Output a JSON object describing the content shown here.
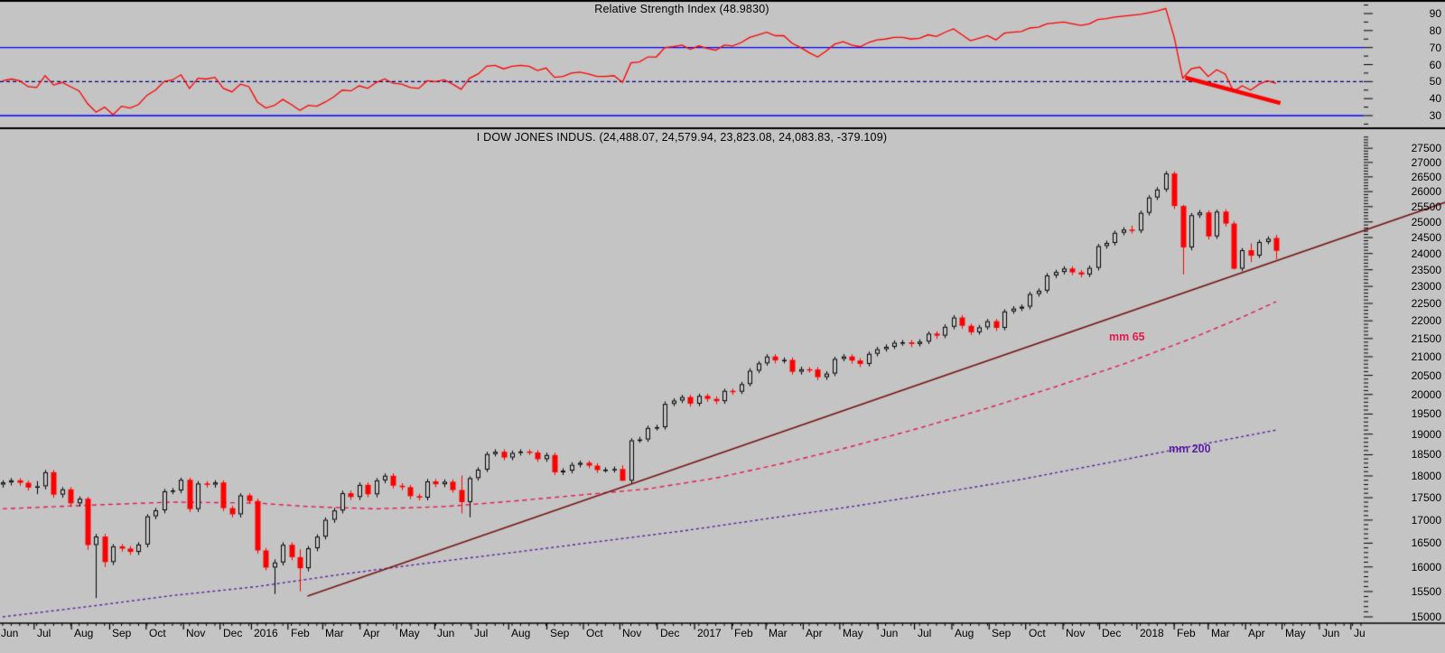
{
  "rsi_panel": {
    "title": "Relative Strength Index (48.9830)",
    "value": 48.983,
    "axis": {
      "min": 30,
      "max": 90,
      "step": 10,
      "minor_step": 5,
      "overbought": 70,
      "oversold": 30,
      "mid": 50
    }
  },
  "price_panel": {
    "title": "I DOW JONES INDUS. (24,488.07, 24,579.94, 23,823.08, 24,083.83, -379.109)",
    "last_bar": {
      "open": "24,488.07",
      "high": "24,579.94",
      "low": "23,823.08",
      "close": "24,083.83",
      "change": "-379.109"
    },
    "ma65_label": "mm 65",
    "ma200_label": "mm 200",
    "axis": {
      "min": 15000,
      "max": 27500,
      "step": 500,
      "minor_step": 100,
      "scale": "log"
    }
  },
  "colors": {
    "background": "#c4c4c4",
    "up_candle": "#000000",
    "down_candle": "#ff0000",
    "rsi_line": "#ff0000",
    "rsi_trend": "#ff0000",
    "band_line": "#0000ff",
    "mid_line": "#000080",
    "trendline": "#781414",
    "ma65": "#e8184c",
    "ma200": "#5a1fa5",
    "axis": "#000000",
    "text": "#000000"
  },
  "chart_data": {
    "type": "candlestick",
    "instrument": "DOW JONES INDUS.",
    "frequency": "weekly",
    "x_range": [
      "Jun 2015",
      "Jul 2018"
    ],
    "ylim": [
      15000,
      27500
    ],
    "y_scale": "log",
    "grid": false,
    "month_labels": [
      [
        "Jun",
        -0.5
      ],
      [
        "Jul",
        3.7
      ],
      [
        "Aug",
        8.1
      ],
      [
        "Sep",
        12.6
      ],
      [
        "Oct",
        16.9
      ],
      [
        "Nov",
        21.3
      ],
      [
        "Dec",
        25.6
      ],
      [
        "2016",
        29.3
      ],
      [
        "Feb",
        33.6
      ],
      [
        "Mar",
        37.7
      ],
      [
        "Apr",
        42.1
      ],
      [
        "May",
        46.4
      ],
      [
        "Jun",
        50.9
      ],
      [
        "Jul",
        55.2
      ],
      [
        "Aug",
        59.6
      ],
      [
        "Sep",
        64.1
      ],
      [
        "Oct",
        68.4
      ],
      [
        "Nov",
        72.7
      ],
      [
        "Dec",
        77.1
      ],
      [
        "2017",
        81.5
      ],
      [
        "Feb",
        85.9
      ],
      [
        "Mar",
        89.9
      ],
      [
        "Apr",
        94.3
      ],
      [
        "May",
        98.6
      ],
      [
        "Jun",
        103.1
      ],
      [
        "Jul",
        107.4
      ],
      [
        "Aug",
        111.8
      ],
      [
        "Sep",
        116.2
      ],
      [
        "Oct",
        120.5
      ],
      [
        "Nov",
        124.9
      ],
      [
        "Dec",
        129.2
      ],
      [
        "2018",
        133.6
      ],
      [
        "Feb",
        138.0
      ],
      [
        "Mar",
        142.0
      ],
      [
        "Apr",
        146.4
      ],
      [
        "May",
        150.7
      ],
      [
        "Jun",
        155.1
      ],
      [
        "Ju",
        158.8
      ]
    ],
    "candles": [
      [
        17800,
        17900,
        17730,
        17849
      ],
      [
        17849,
        17950,
        17780,
        17898
      ],
      [
        17898,
        17950,
        17770,
        17840
      ],
      [
        17840,
        17890,
        17660,
        17730
      ],
      [
        17730,
        17880,
        17580,
        17760
      ],
      [
        17760,
        18140,
        17690,
        18086
      ],
      [
        18086,
        18140,
        17500,
        17569
      ],
      [
        17569,
        17740,
        17500,
        17690
      ],
      [
        17690,
        17740,
        17300,
        17373
      ],
      [
        17373,
        17530,
        17300,
        17477
      ],
      [
        17477,
        17520,
        16360,
        16460
      ],
      [
        16460,
        16700,
        15370,
        16643
      ],
      [
        16643,
        16700,
        16000,
        16102
      ],
      [
        16102,
        16480,
        16040,
        16433
      ],
      [
        16433,
        16480,
        16320,
        16385
      ],
      [
        16385,
        16440,
        16250,
        16315
      ],
      [
        16315,
        16520,
        16250,
        16472
      ],
      [
        16472,
        17130,
        16410,
        17084
      ],
      [
        17084,
        17270,
        17020,
        17216
      ],
      [
        17216,
        17700,
        17150,
        17647
      ],
      [
        17647,
        17720,
        17580,
        17664
      ],
      [
        17664,
        17960,
        17600,
        17910
      ],
      [
        17910,
        17960,
        17180,
        17245
      ],
      [
        17245,
        17880,
        17180,
        17824
      ],
      [
        17824,
        17880,
        17730,
        17798
      ],
      [
        17798,
        17900,
        17730,
        17848
      ],
      [
        17848,
        17900,
        17200,
        17265
      ],
      [
        17265,
        17320,
        17060,
        17128
      ],
      [
        17128,
        17600,
        17060,
        17552
      ],
      [
        17552,
        17600,
        17360,
        17425
      ],
      [
        17425,
        17480,
        16280,
        16346
      ],
      [
        16346,
        16400,
        15930,
        15988
      ],
      [
        15988,
        16160,
        15450,
        16094
      ],
      [
        16094,
        16520,
        16030,
        16466
      ],
      [
        16466,
        16520,
        16140,
        16205
      ],
      [
        16205,
        16370,
        15503,
        15974
      ],
      [
        15974,
        16440,
        15910,
        16392
      ],
      [
        16392,
        16690,
        16330,
        16640
      ],
      [
        16640,
        17060,
        16580,
        17007
      ],
      [
        17007,
        17270,
        16940,
        17213
      ],
      [
        17213,
        17660,
        17150,
        17602
      ],
      [
        17602,
        17660,
        17450,
        17516
      ],
      [
        17516,
        17850,
        17450,
        17793
      ],
      [
        17793,
        17850,
        17510,
        17577
      ],
      [
        17577,
        17950,
        17510,
        17897
      ],
      [
        17897,
        18060,
        17830,
        18004
      ],
      [
        18004,
        18060,
        17710,
        17774
      ],
      [
        17774,
        17830,
        17670,
        17740
      ],
      [
        17740,
        17790,
        17470,
        17535
      ],
      [
        17535,
        17590,
        17440,
        17501
      ],
      [
        17501,
        17930,
        17440,
        17873
      ],
      [
        17873,
        17930,
        17740,
        17807
      ],
      [
        17807,
        17920,
        17740,
        17865
      ],
      [
        17865,
        17920,
        17610,
        17675
      ],
      [
        17675,
        18011,
        17150,
        17400
      ],
      [
        17400,
        17990,
        17063,
        17949
      ],
      [
        17949,
        18200,
        17890,
        18147
      ],
      [
        18147,
        18570,
        18090,
        18516
      ],
      [
        18516,
        18630,
        18460,
        18571
      ],
      [
        18571,
        18630,
        18370,
        18432
      ],
      [
        18432,
        18600,
        18370,
        18543
      ],
      [
        18543,
        18630,
        18480,
        18576
      ],
      [
        18576,
        18630,
        18490,
        18553
      ],
      [
        18553,
        18610,
        18330,
        18395
      ],
      [
        18395,
        18550,
        18330,
        18492
      ],
      [
        18492,
        18550,
        18020,
        18085
      ],
      [
        18085,
        18180,
        18020,
        18123
      ],
      [
        18123,
        18320,
        18060,
        18261
      ],
      [
        18261,
        18360,
        18200,
        18308
      ],
      [
        18308,
        18360,
        18180,
        18240
      ],
      [
        18240,
        18300,
        18070,
        18138
      ],
      [
        18138,
        18200,
        18080,
        18146
      ],
      [
        18146,
        18220,
        18080,
        18161
      ],
      [
        18161,
        18250,
        17883,
        17888
      ],
      [
        17888,
        18900,
        17830,
        18848
      ],
      [
        18848,
        18930,
        18790,
        18868
      ],
      [
        18868,
        19210,
        18810,
        19152
      ],
      [
        19152,
        19230,
        19090,
        19170
      ],
      [
        19170,
        19820,
        19110,
        19757
      ],
      [
        19757,
        19900,
        19700,
        19843
      ],
      [
        19843,
        19990,
        19780,
        19934
      ],
      [
        19934,
        19990,
        19690,
        19763
      ],
      [
        19763,
        20020,
        19700,
        19964
      ],
      [
        19964,
        20020,
        19810,
        19886
      ],
      [
        19886,
        19950,
        19750,
        19827
      ],
      [
        19827,
        20150,
        19760,
        20094
      ],
      [
        20094,
        20150,
        19990,
        20071
      ],
      [
        20071,
        20330,
        20010,
        20269
      ],
      [
        20269,
        20690,
        20210,
        20624
      ],
      [
        20624,
        20880,
        20560,
        20822
      ],
      [
        20822,
        21070,
        20760,
        21006
      ],
      [
        21006,
        21070,
        20820,
        20903
      ],
      [
        20903,
        20980,
        20820,
        20915
      ],
      [
        20915,
        20980,
        20520,
        20597
      ],
      [
        20597,
        20730,
        20520,
        20663
      ],
      [
        20663,
        20720,
        20570,
        20656
      ],
      [
        20656,
        20720,
        20370,
        20453
      ],
      [
        20453,
        20610,
        20380,
        20548
      ],
      [
        20548,
        21000,
        20480,
        20941
      ],
      [
        20941,
        21070,
        20880,
        21007
      ],
      [
        21007,
        21070,
        20810,
        20897
      ],
      [
        20897,
        20960,
        20720,
        20805
      ],
      [
        20805,
        21140,
        20740,
        21080
      ],
      [
        21080,
        21270,
        21010,
        21206
      ],
      [
        21206,
        21340,
        21140,
        21272
      ],
      [
        21272,
        21450,
        21210,
        21384
      ],
      [
        21384,
        21460,
        21300,
        21395
      ],
      [
        21395,
        21460,
        21260,
        21350
      ],
      [
        21350,
        21480,
        21280,
        21414
      ],
      [
        21414,
        21700,
        21350,
        21638
      ],
      [
        21638,
        21700,
        21490,
        21580
      ],
      [
        21580,
        21900,
        21510,
        21830
      ],
      [
        21830,
        22160,
        21760,
        22093
      ],
      [
        22093,
        22160,
        21770,
        21858
      ],
      [
        21858,
        21920,
        21600,
        21675
      ],
      [
        21675,
        21880,
        21610,
        21814
      ],
      [
        21814,
        22050,
        21750,
        21988
      ],
      [
        21988,
        22050,
        21710,
        21798
      ],
      [
        21798,
        22330,
        21730,
        22268
      ],
      [
        22268,
        22420,
        22200,
        22350
      ],
      [
        22350,
        22470,
        22280,
        22405
      ],
      [
        22405,
        22840,
        22330,
        22774
      ],
      [
        22774,
        22940,
        22700,
        22872
      ],
      [
        22872,
        23400,
        22800,
        23329
      ],
      [
        23329,
        23500,
        23250,
        23434
      ],
      [
        23434,
        23610,
        23360,
        23539
      ],
      [
        23539,
        23610,
        23340,
        23422
      ],
      [
        23422,
        23490,
        23270,
        23358
      ],
      [
        23358,
        23630,
        23280,
        23558
      ],
      [
        23558,
        24300,
        23480,
        24232
      ],
      [
        24232,
        24400,
        24150,
        24329
      ],
      [
        24329,
        24720,
        24250,
        24652
      ],
      [
        24652,
        24830,
        24570,
        24754
      ],
      [
        24754,
        24880,
        24630,
        24719
      ],
      [
        24719,
        25370,
        24640,
        25296
      ],
      [
        25296,
        25880,
        25210,
        25803
      ],
      [
        25803,
        26150,
        25720,
        26072
      ],
      [
        26072,
        26700,
        25990,
        26617
      ],
      [
        26617,
        26690,
        25420,
        25521
      ],
      [
        25521,
        25560,
        23360,
        24191
      ],
      [
        24191,
        25290,
        24100,
        25219
      ],
      [
        25219,
        25390,
        25130,
        25310
      ],
      [
        25310,
        25380,
        24440,
        24538
      ],
      [
        24538,
        25400,
        24460,
        25336
      ],
      [
        25336,
        25410,
        24850,
        24947
      ],
      [
        24947,
        25020,
        23509,
        23533
      ],
      [
        23533,
        24170,
        23460,
        24103
      ],
      [
        24103,
        24314,
        23738,
        23933
      ],
      [
        23933,
        24430,
        23860,
        24360
      ],
      [
        24360,
        24540,
        24290,
        24463
      ],
      [
        24488.07,
        24579.94,
        23823.08,
        24083.83
      ]
    ],
    "rsi": [
      50.5,
      51.5,
      50.5,
      47,
      46.5,
      53.5,
      48,
      49.5,
      47,
      44.5,
      37,
      32,
      35,
      30.5,
      35.5,
      34.5,
      36.5,
      42,
      45,
      50,
      51,
      54,
      46,
      52,
      51.5,
      52.5,
      46,
      44,
      48.5,
      47,
      38,
      34.5,
      36,
      39.5,
      36.5,
      33,
      36,
      35.5,
      38,
      41,
      45,
      44.5,
      47.5,
      46,
      49.5,
      51.5,
      49,
      48.5,
      46.5,
      46,
      50.5,
      50,
      51,
      48.5,
      45.5,
      52,
      54.5,
      59,
      59.5,
      57.5,
      59,
      59.5,
      59,
      56.5,
      58,
      52.5,
      53,
      55,
      55.5,
      54.5,
      53,
      53,
      53.5,
      49.5,
      61,
      61.5,
      64.5,
      64.5,
      70,
      70.5,
      71.5,
      69,
      71,
      69.5,
      68.5,
      71.5,
      71,
      73,
      76,
      77.5,
      79,
      77,
      77,
      72.5,
      70,
      67,
      64.5,
      68,
      72,
      73.5,
      71.5,
      70.5,
      73,
      74.5,
      75,
      76,
      76,
      75,
      75.5,
      77.5,
      76.5,
      79,
      81,
      77.5,
      74,
      75.5,
      77,
      74.5,
      78.5,
      79,
      79.5,
      81.5,
      82,
      84,
      84.5,
      85,
      84,
      83,
      84,
      86.5,
      87,
      88,
      88.5,
      89,
      89.5,
      90.5,
      91.5,
      93,
      76,
      52,
      57.5,
      58.5,
      53,
      57,
      54.5,
      44,
      47.5,
      45,
      48.5,
      50.5,
      48.98
    ],
    "ma65_points": [
      [
        0,
        17250
      ],
      [
        10,
        17330
      ],
      [
        20,
        17400
      ],
      [
        30,
        17380
      ],
      [
        36,
        17300
      ],
      [
        44,
        17250
      ],
      [
        52,
        17300
      ],
      [
        60,
        17420
      ],
      [
        68,
        17560
      ],
      [
        76,
        17700
      ],
      [
        84,
        17950
      ],
      [
        92,
        18300
      ],
      [
        100,
        18700
      ],
      [
        108,
        19150
      ],
      [
        116,
        19650
      ],
      [
        124,
        20200
      ],
      [
        132,
        20800
      ],
      [
        140,
        21500
      ],
      [
        146,
        22100
      ],
      [
        150,
        22550
      ]
    ],
    "ma200_points": [
      [
        0,
        15000
      ],
      [
        10,
        15200
      ],
      [
        20,
        15420
      ],
      [
        30,
        15600
      ],
      [
        40,
        15850
      ],
      [
        50,
        16080
      ],
      [
        60,
        16300
      ],
      [
        70,
        16530
      ],
      [
        80,
        16760
      ],
      [
        90,
        17030
      ],
      [
        100,
        17300
      ],
      [
        110,
        17600
      ],
      [
        120,
        17920
      ],
      [
        130,
        18300
      ],
      [
        140,
        18700
      ],
      [
        150,
        19100
      ]
    ],
    "price_trendline": {
      "from": [
        35.9,
        15410
      ],
      "to": [
        170,
        25650
      ]
    },
    "rsi_trendline": {
      "from": [
        139.3,
        52.3
      ],
      "to": [
        150.5,
        37.4
      ]
    }
  }
}
